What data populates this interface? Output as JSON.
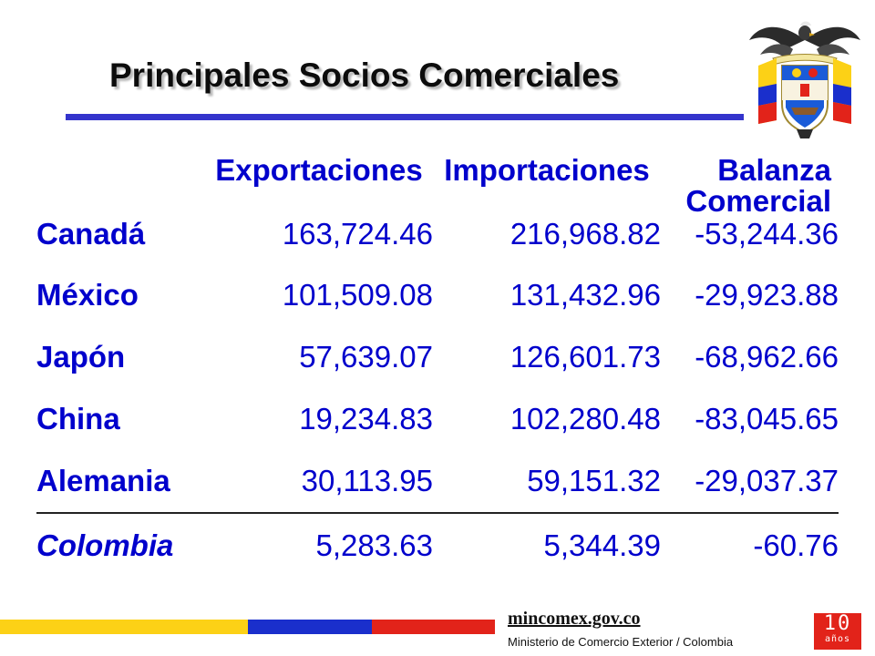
{
  "header": {
    "title": "Principales Socios Comerciales",
    "crest_icon": "colombia-coat-of-arms-icon"
  },
  "table": {
    "columns": [
      "",
      "Exportaciones",
      "Importaciones",
      "Balanza Comercial"
    ],
    "rows": [
      {
        "country": "Canadá",
        "exportaciones": "163,724.46",
        "importaciones": "216,968.82",
        "balanza": "-53,244.36"
      },
      {
        "country": "México",
        "exportaciones": "101,509.08",
        "importaciones": "131,432.96",
        "balanza": "-29,923.88"
      },
      {
        "country": "Japón",
        "exportaciones": "57,639.07",
        "importaciones": "126,601.73",
        "balanza": "-68,962.66"
      },
      {
        "country": "China",
        "exportaciones": "19,234.83",
        "importaciones": "102,280.48",
        "balanza": "-83,045.65"
      },
      {
        "country": "Alemania",
        "exportaciones": "30,113.95",
        "importaciones": "59,151.32",
        "balanza": "-29,037.37"
      },
      {
        "country": "Colombia",
        "exportaciones": "5,283.63",
        "importaciones": "5,344.39",
        "balanza": "-60.76"
      }
    ]
  },
  "footer": {
    "site": "mincomex.gov.co",
    "ministry": "Ministerio de Comercio Exterior / Colombia",
    "badge_number": "10",
    "badge_label": "años",
    "flag_colors": [
      "#fcd116",
      "#1a2fcc",
      "#e2231a"
    ]
  },
  "colors": {
    "table_text": "#0000cc",
    "title_rule": "#3434cc",
    "badge": "#e2231a"
  }
}
